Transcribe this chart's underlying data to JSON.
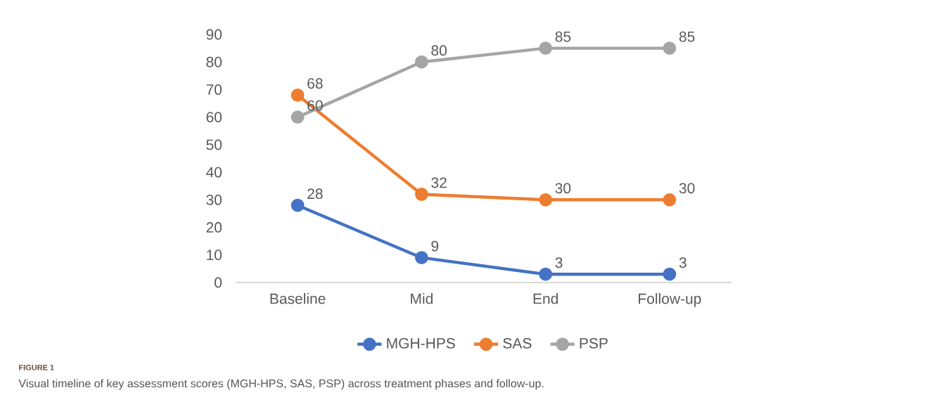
{
  "chart_data": {
    "type": "line",
    "categories": [
      "Baseline",
      "Mid",
      "End",
      "Follow-up"
    ],
    "series": [
      {
        "name": "MGH-HPS",
        "color": "#4472c4",
        "values": [
          28,
          9,
          3,
          3
        ]
      },
      {
        "name": "SAS",
        "color": "#ed7d31",
        "values": [
          68,
          32,
          30,
          30
        ]
      },
      {
        "name": "PSP",
        "color": "#a5a5a5",
        "values": [
          60,
          80,
          85,
          85
        ]
      }
    ],
    "ylim": [
      0,
      90
    ],
    "yticks": [
      0,
      10,
      20,
      30,
      40,
      50,
      60,
      70,
      80,
      90
    ],
    "grid": false,
    "legend": "bottom",
    "marker": "circle",
    "line_style": "solid",
    "data_labels": true,
    "annotations": [
      "FIGURE 1",
      "Visual timeline of key assessment scores (MGH-HPS, SAS, PSP) across treatment phases and follow-up."
    ]
  }
}
